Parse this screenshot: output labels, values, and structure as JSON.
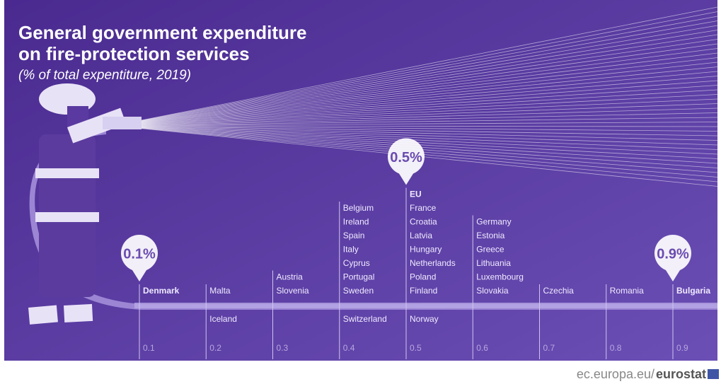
{
  "chart_data": {
    "type": "strip",
    "title": [
      "General government expenditure",
      "on fire-protection services"
    ],
    "subtitle": "(% of total expentiture, 2019)",
    "xlim": [
      0.1,
      0.9
    ],
    "xticks": [
      0.1,
      0.2,
      0.3,
      0.4,
      0.5,
      0.6,
      0.7,
      0.8,
      0.9
    ],
    "columns": [
      {
        "value": 0.1,
        "above": [
          "Denmark"
        ],
        "below": []
      },
      {
        "value": 0.2,
        "above": [
          "Malta"
        ],
        "below": [
          "Iceland"
        ]
      },
      {
        "value": 0.3,
        "above": [
          "Austria",
          "Slovenia"
        ],
        "below": []
      },
      {
        "value": 0.4,
        "above": [
          "Belgium",
          "Ireland",
          "Spain",
          "Italy",
          "Cyprus",
          "Portugal",
          "Sweden"
        ],
        "below": [
          "Switzerland"
        ]
      },
      {
        "value": 0.5,
        "heading": "EU",
        "above": [
          "France",
          "Croatia",
          "Latvia",
          "Hungary",
          "Netherlands",
          "Poland",
          "Finland"
        ],
        "below": [
          "Norway"
        ]
      },
      {
        "value": 0.6,
        "above": [
          "Germany",
          "Estonia",
          "Greece",
          "Lithuania",
          "Luxembourg",
          "Slovakia"
        ],
        "below": []
      },
      {
        "value": 0.7,
        "above": [
          "Czechia"
        ],
        "below": []
      },
      {
        "value": 0.8,
        "above": [
          "Romania"
        ],
        "below": []
      },
      {
        "value": 0.9,
        "above": [
          "Bulgaria"
        ],
        "below": []
      }
    ],
    "callouts": [
      {
        "value": 0.1,
        "label": "0.1%"
      },
      {
        "value": 0.5,
        "label": "0.5%"
      },
      {
        "value": 0.9,
        "label": "0.9%"
      }
    ],
    "source": [
      "ec.europa.eu/",
      "eurostat"
    ]
  }
}
